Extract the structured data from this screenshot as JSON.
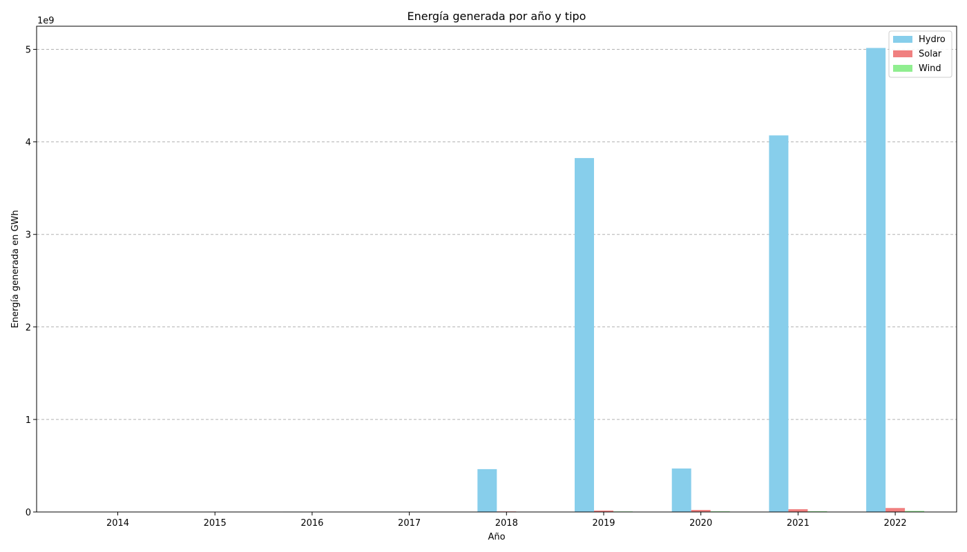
{
  "chart_data": {
    "type": "bar",
    "title": "Energía generada por año y tipo",
    "xlabel": "Año",
    "ylabel": "Energía generada en GWh",
    "y_offset_text": "1e9",
    "y_scale": 1000000000,
    "ylim": [
      0,
      5.25
    ],
    "yticks": [
      0,
      1,
      2,
      3,
      4,
      5
    ],
    "grid": "y-dashed",
    "legend_position": "top-right",
    "categories": [
      "2014",
      "2015",
      "2016",
      "2017",
      "2018",
      "2019",
      "2020",
      "2021",
      "2022"
    ],
    "series": [
      {
        "name": "Hydro",
        "color": "#87ceeb",
        "values": [
          0.003,
          0.003,
          0.004,
          0.004,
          0.463,
          3.825,
          0.47,
          4.07,
          5.015
        ]
      },
      {
        "name": "Solar",
        "color": "#f08080",
        "values": [
          0.0,
          0.0,
          0.0,
          0.001,
          0.006,
          0.015,
          0.022,
          0.03,
          0.043
        ]
      },
      {
        "name": "Wind",
        "color": "#90ee90",
        "values": [
          0.0,
          0.0,
          0.0,
          0.001,
          0.003,
          0.006,
          0.007,
          0.008,
          0.011
        ]
      }
    ]
  }
}
